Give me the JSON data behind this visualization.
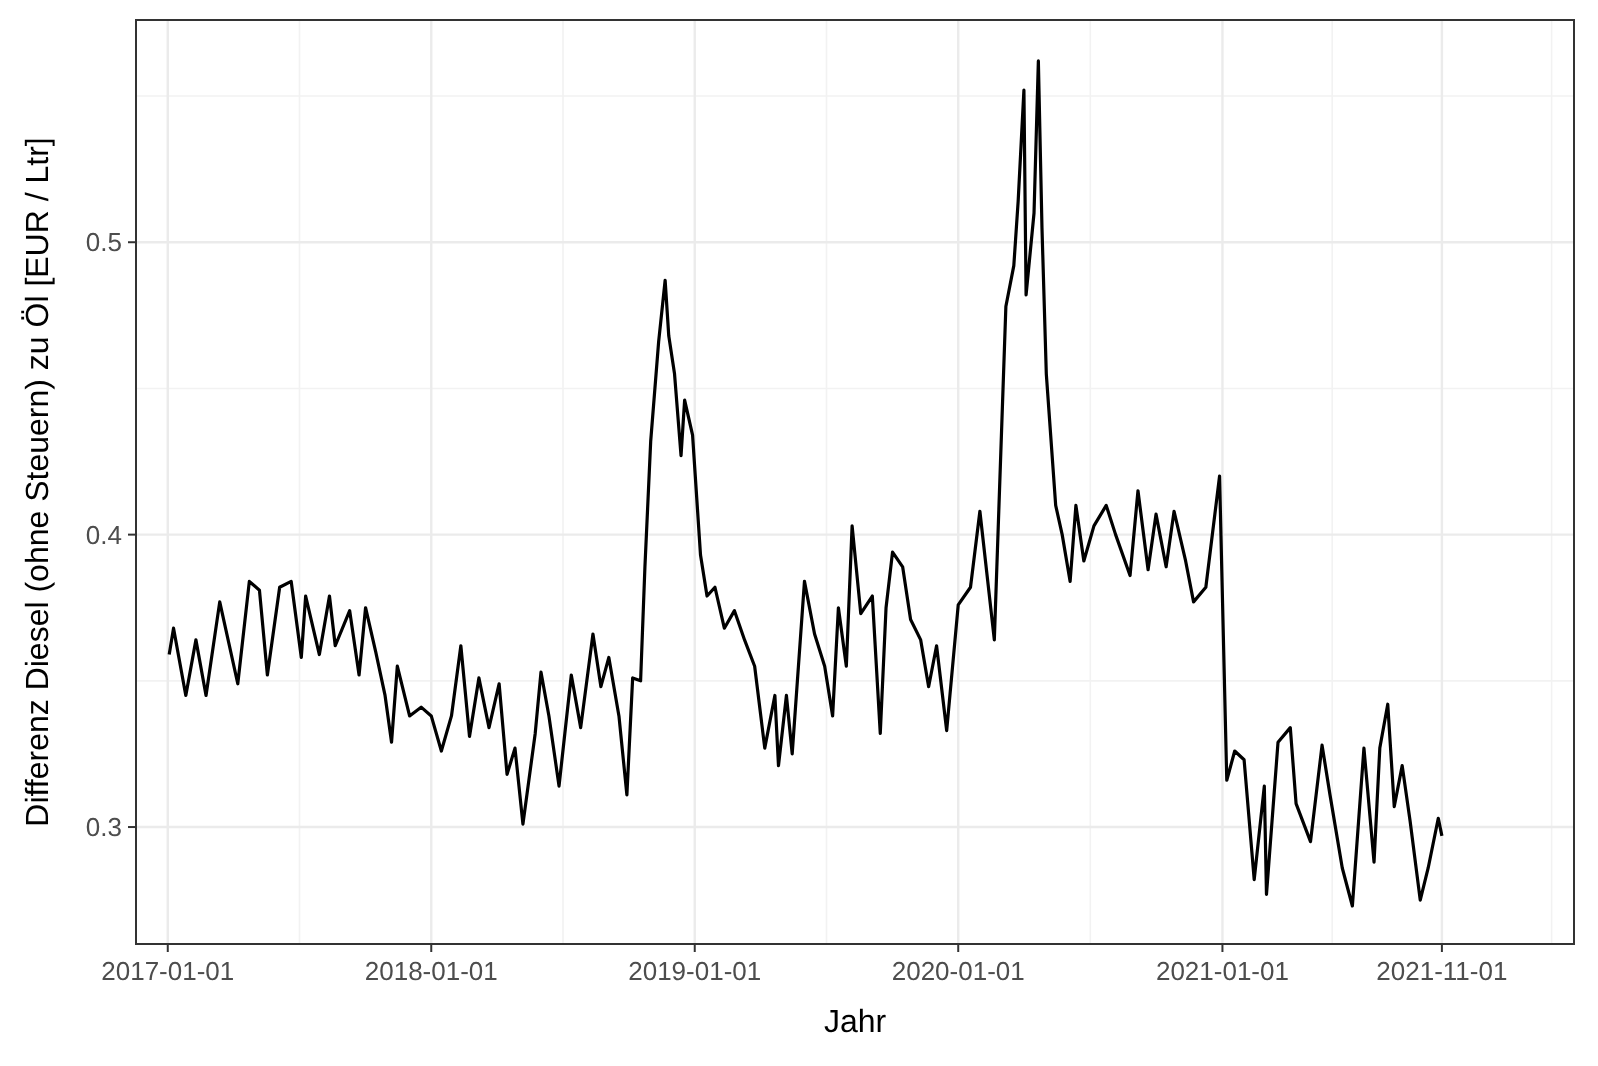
{
  "chart_data": {
    "type": "line",
    "xlabel": "Jahr",
    "ylabel": "Differenz Diesel (ohne Steuern) zu Öl [EUR / Ltr]",
    "xlim": [
      "2016-11-18",
      "2022-05-03"
    ],
    "ylim": [
      0.26,
      0.576
    ],
    "xticks": [
      {
        "value": "2017-01-01",
        "label": "2017-01-01"
      },
      {
        "value": "2018-01-01",
        "label": "2018-01-01"
      },
      {
        "value": "2019-01-01",
        "label": "2019-01-01"
      },
      {
        "value": "2020-01-01",
        "label": "2020-01-01"
      },
      {
        "value": "2021-01-01",
        "label": "2021-01-01"
      },
      {
        "value": "2021-11-01",
        "label": "2021-11-01"
      }
    ],
    "yticks": [
      0.3,
      0.4,
      0.5
    ],
    "grid": true,
    "series": [
      {
        "color": "#000000",
        "x": [
          "2017-01-03",
          "2017-01-09",
          "2017-01-26",
          "2017-02-09",
          "2017-02-23",
          "2017-03-14",
          "2017-04-08",
          "2017-04-24",
          "2017-05-08",
          "2017-05-19",
          "2017-06-05",
          "2017-06-21",
          "2017-07-05",
          "2017-07-11",
          "2017-07-30",
          "2017-08-13",
          "2017-08-21",
          "2017-09-10",
          "2017-09-23",
          "2017-10-02",
          "2017-10-16",
          "2017-10-29",
          "2017-11-07",
          "2017-11-15",
          "2017-12-02",
          "2017-12-18",
          "2018-01-01",
          "2018-01-15",
          "2018-01-29",
          "2018-02-11",
          "2018-02-23",
          "2018-03-08",
          "2018-03-22",
          "2018-04-05",
          "2018-04-16",
          "2018-04-27",
          "2018-05-08",
          "2018-05-25",
          "2018-06-02",
          "2018-06-13",
          "2018-06-27",
          "2018-07-14",
          "2018-07-27",
          "2018-08-13",
          "2018-08-24",
          "2018-09-04",
          "2018-09-18",
          "2018-09-29",
          "2018-10-07",
          "2018-10-18",
          "2018-10-24",
          "2018-11-01",
          "2018-11-12",
          "2018-11-21",
          "2018-11-26",
          "2018-12-04",
          "2018-12-13",
          "2018-12-18",
          "2018-12-29",
          "2019-01-09",
          "2019-01-18",
          "2019-01-29",
          "2019-02-11",
          "2019-02-25",
          "2019-03-11",
          "2019-03-25",
          "2019-04-08",
          "2019-04-22",
          "2019-04-27",
          "2019-05-08",
          "2019-05-16",
          "2019-06-02",
          "2019-06-16",
          "2019-06-30",
          "2019-07-11",
          "2019-07-19",
          "2019-07-30",
          "2019-08-07",
          "2019-08-19",
          "2019-09-04",
          "2019-09-15",
          "2019-09-23",
          "2019-10-02",
          "2019-10-16",
          "2019-10-27",
          "2019-11-10",
          "2019-11-21",
          "2019-12-02",
          "2019-12-16",
          "2020-01-01",
          "2020-01-18",
          "2020-01-31",
          "2020-02-20",
          "2020-03-07",
          "2020-03-18",
          "2020-03-24",
          "2020-04-01",
          "2020-04-04",
          "2020-04-15",
          "2020-04-21",
          "2020-04-26",
          "2020-05-02",
          "2020-05-15",
          "2020-05-24",
          "2020-06-04",
          "2020-06-12",
          "2020-06-23",
          "2020-07-07",
          "2020-07-24",
          "2020-08-06",
          "2020-08-26",
          "2020-09-06",
          "2020-09-20",
          "2020-10-01",
          "2020-10-15",
          "2020-10-26",
          "2020-11-11",
          "2020-11-22",
          "2020-12-09",
          "2020-12-28",
          "2021-01-07",
          "2021-01-18",
          "2021-01-31",
          "2021-02-14",
          "2021-02-28",
          "2021-03-03",
          "2021-03-19",
          "2021-04-05",
          "2021-04-13",
          "2021-05-03",
          "2021-05-19",
          "2021-05-30",
          "2021-06-16",
          "2021-06-30",
          "2021-07-16",
          "2021-07-30",
          "2021-08-07",
          "2021-08-18",
          "2021-08-27",
          "2021-09-07",
          "2021-09-18",
          "2021-10-02",
          "2021-10-13",
          "2021-10-27",
          "2021-11-01"
        ],
        "values": [
          0.359,
          0.368,
          0.345,
          0.364,
          0.345,
          0.377,
          0.349,
          0.384,
          0.381,
          0.352,
          0.382,
          0.384,
          0.358,
          0.379,
          0.359,
          0.379,
          0.362,
          0.374,
          0.352,
          0.375,
          0.36,
          0.345,
          0.329,
          0.355,
          0.338,
          0.341,
          0.338,
          0.326,
          0.338,
          0.362,
          0.331,
          0.351,
          0.334,
          0.349,
          0.318,
          0.327,
          0.301,
          0.332,
          0.353,
          0.338,
          0.314,
          0.352,
          0.334,
          0.366,
          0.348,
          0.358,
          0.338,
          0.311,
          0.351,
          0.35,
          0.389,
          0.432,
          0.466,
          0.487,
          0.468,
          0.455,
          0.427,
          0.446,
          0.434,
          0.393,
          0.379,
          0.382,
          0.368,
          0.374,
          0.364,
          0.355,
          0.327,
          0.345,
          0.321,
          0.345,
          0.325,
          0.384,
          0.366,
          0.355,
          0.338,
          0.375,
          0.355,
          0.403,
          0.373,
          0.379,
          0.332,
          0.375,
          0.394,
          0.389,
          0.371,
          0.364,
          0.348,
          0.362,
          0.333,
          0.376,
          0.382,
          0.408,
          0.364,
          0.478,
          0.492,
          0.514,
          0.552,
          0.482,
          0.51,
          0.562,
          0.505,
          0.455,
          0.41,
          0.4,
          0.384,
          0.41,
          0.391,
          0.403,
          0.41,
          0.4,
          0.386,
          0.415,
          0.388,
          0.407,
          0.389,
          0.408,
          0.391,
          0.377,
          0.382,
          0.42,
          0.316,
          0.326,
          0.323,
          0.282,
          0.314,
          0.277,
          0.329,
          0.334,
          0.308,
          0.295,
          0.328,
          0.311,
          0.286,
          0.273,
          0.327,
          0.288,
          0.327,
          0.342,
          0.307,
          0.321,
          0.302,
          0.275,
          0.286,
          0.303,
          0.297
        ]
      }
    ]
  }
}
